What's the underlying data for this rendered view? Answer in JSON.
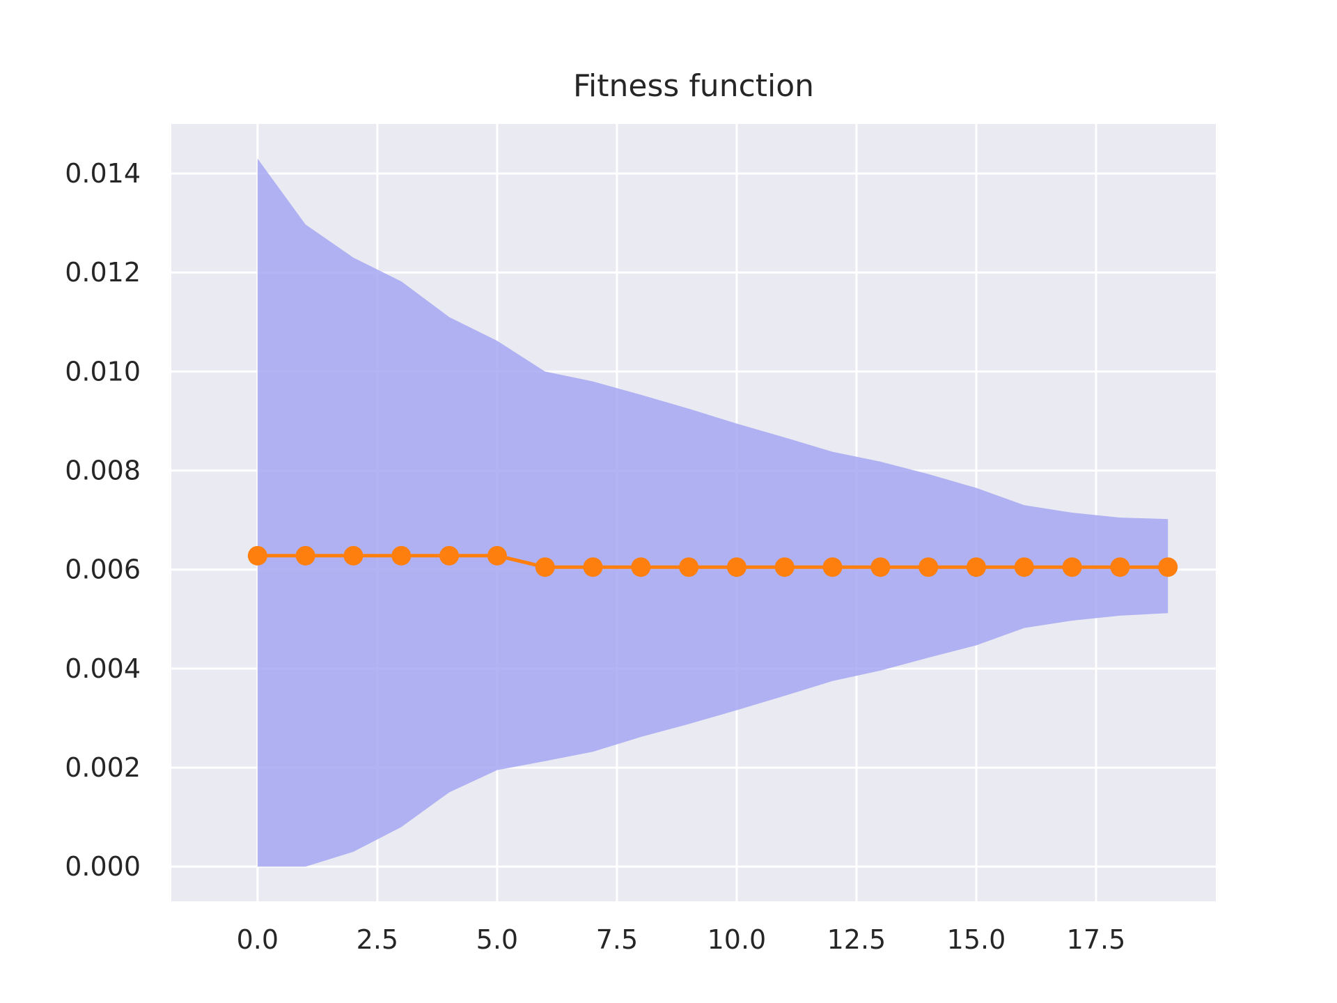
{
  "chart_data": {
    "type": "line",
    "title": "Fitness function",
    "xlabel": "",
    "ylabel": "",
    "xlim": [
      -1.8,
      20.0
    ],
    "ylim": [
      -0.0007,
      0.015
    ],
    "x_ticks": [
      0.0,
      2.5,
      5.0,
      7.5,
      10.0,
      12.5,
      15.0,
      17.5
    ],
    "x_tick_labels": [
      "0.0",
      "2.5",
      "5.0",
      "7.5",
      "10.0",
      "12.5",
      "15.0",
      "17.5"
    ],
    "y_ticks": [
      0.0,
      0.002,
      0.004,
      0.006,
      0.008,
      0.01,
      0.012,
      0.014
    ],
    "y_tick_labels": [
      "0.000",
      "0.002",
      "0.004",
      "0.006",
      "0.008",
      "0.010",
      "0.012",
      "0.014"
    ],
    "grid": true,
    "legend": "none",
    "x": [
      0,
      1,
      2,
      3,
      4,
      5,
      6,
      7,
      8,
      9,
      10,
      11,
      12,
      13,
      14,
      15,
      16,
      17,
      18,
      19
    ],
    "series": [
      {
        "type": "line",
        "values": [
          0.00628,
          0.00628,
          0.00628,
          0.00628,
          0.00628,
          0.00628,
          0.00605,
          0.00605,
          0.00605,
          0.00605,
          0.00605,
          0.00605,
          0.00605,
          0.00605,
          0.00605,
          0.00605,
          0.00605,
          0.00605,
          0.00605,
          0.00605
        ],
        "color": "#ff7f0e"
      }
    ],
    "band": {
      "upper": [
        0.0143,
        0.01297,
        0.0123,
        0.01182,
        0.0111,
        0.01062,
        0.01,
        0.0098,
        0.00953,
        0.00925,
        0.00895,
        0.00867,
        0.00838,
        0.00818,
        0.00793,
        0.00765,
        0.0073,
        0.00715,
        0.00705,
        0.00702
      ],
      "lower": [
        0.0,
        0.0,
        0.0003,
        0.0008,
        0.0015,
        0.00195,
        0.00213,
        0.00232,
        0.00262,
        0.00288,
        0.00316,
        0.00345,
        0.00375,
        0.00396,
        0.00422,
        0.00447,
        0.00482,
        0.00497,
        0.00507,
        0.00512
      ],
      "color": "#b0b0f5"
    },
    "colors": {
      "plot_background": "#eaeaf2",
      "grid": "#ffffff",
      "band_fill": "#a5a7f2",
      "line": "#ff7f0e",
      "text": "#262626"
    }
  }
}
